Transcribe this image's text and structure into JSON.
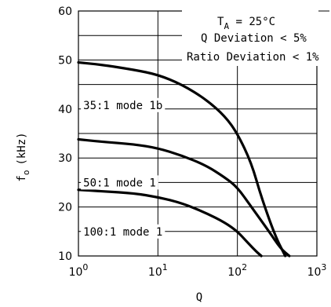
{
  "chart_data": {
    "type": "line",
    "xscale": "log",
    "xlim": [
      1,
      1000
    ],
    "ylim": [
      10,
      60
    ],
    "xlabel": "Q",
    "ylabel": "f",
    "ylabel_sub": "o",
    "ylabel_unit": "(kHz)",
    "x_ticks": [
      {
        "base": "10",
        "exp": "0",
        "value": 1
      },
      {
        "base": "10",
        "exp": "1",
        "value": 10
      },
      {
        "base": "10",
        "exp": "2",
        "value": 100
      },
      {
        "base": "10",
        "exp": "3",
        "value": 1000
      }
    ],
    "y_ticks": [
      {
        "label": "10",
        "value": 10
      },
      {
        "label": "20",
        "value": 20
      },
      {
        "label": "30",
        "value": 30
      },
      {
        "label": "40",
        "value": 40
      },
      {
        "label": "50",
        "value": 50
      },
      {
        "label": "60",
        "value": 60
      }
    ],
    "annotations": {
      "ta_prefix": "T",
      "ta_sub": "A",
      "ta_rest": " = 25°C",
      "q_dev": "Q Deviation < 5%",
      "ratio_dev": "Ratio Deviation < 1%"
    },
    "series": [
      {
        "name": "35:1 mode 1b",
        "points": [
          [
            1,
            49.5
          ],
          [
            2,
            49
          ],
          [
            5,
            48
          ],
          [
            10,
            47
          ],
          [
            20,
            45
          ],
          [
            40,
            42
          ],
          [
            70,
            38.5
          ],
          [
            100,
            35
          ],
          [
            150,
            29
          ],
          [
            200,
            22
          ],
          [
            300,
            14
          ],
          [
            400,
            10
          ]
        ]
      },
      {
        "name": "50:1 mode 1",
        "points": [
          [
            1,
            33.8
          ],
          [
            2,
            33.3
          ],
          [
            5,
            32.8
          ],
          [
            10,
            32
          ],
          [
            20,
            30.5
          ],
          [
            40,
            28.5
          ],
          [
            70,
            26
          ],
          [
            100,
            24
          ],
          [
            150,
            20
          ],
          [
            250,
            15
          ],
          [
            350,
            11.5
          ],
          [
            450,
            10
          ]
        ]
      },
      {
        "name": "100:1 mode 1",
        "points": [
          [
            1,
            23.5
          ],
          [
            2,
            23.2
          ],
          [
            5,
            22.8
          ],
          [
            10,
            22
          ],
          [
            20,
            20.8
          ],
          [
            40,
            18.8
          ],
          [
            70,
            16.8
          ],
          [
            100,
            15
          ],
          [
            130,
            13
          ],
          [
            170,
            11
          ],
          [
            200,
            10
          ]
        ]
      }
    ]
  }
}
